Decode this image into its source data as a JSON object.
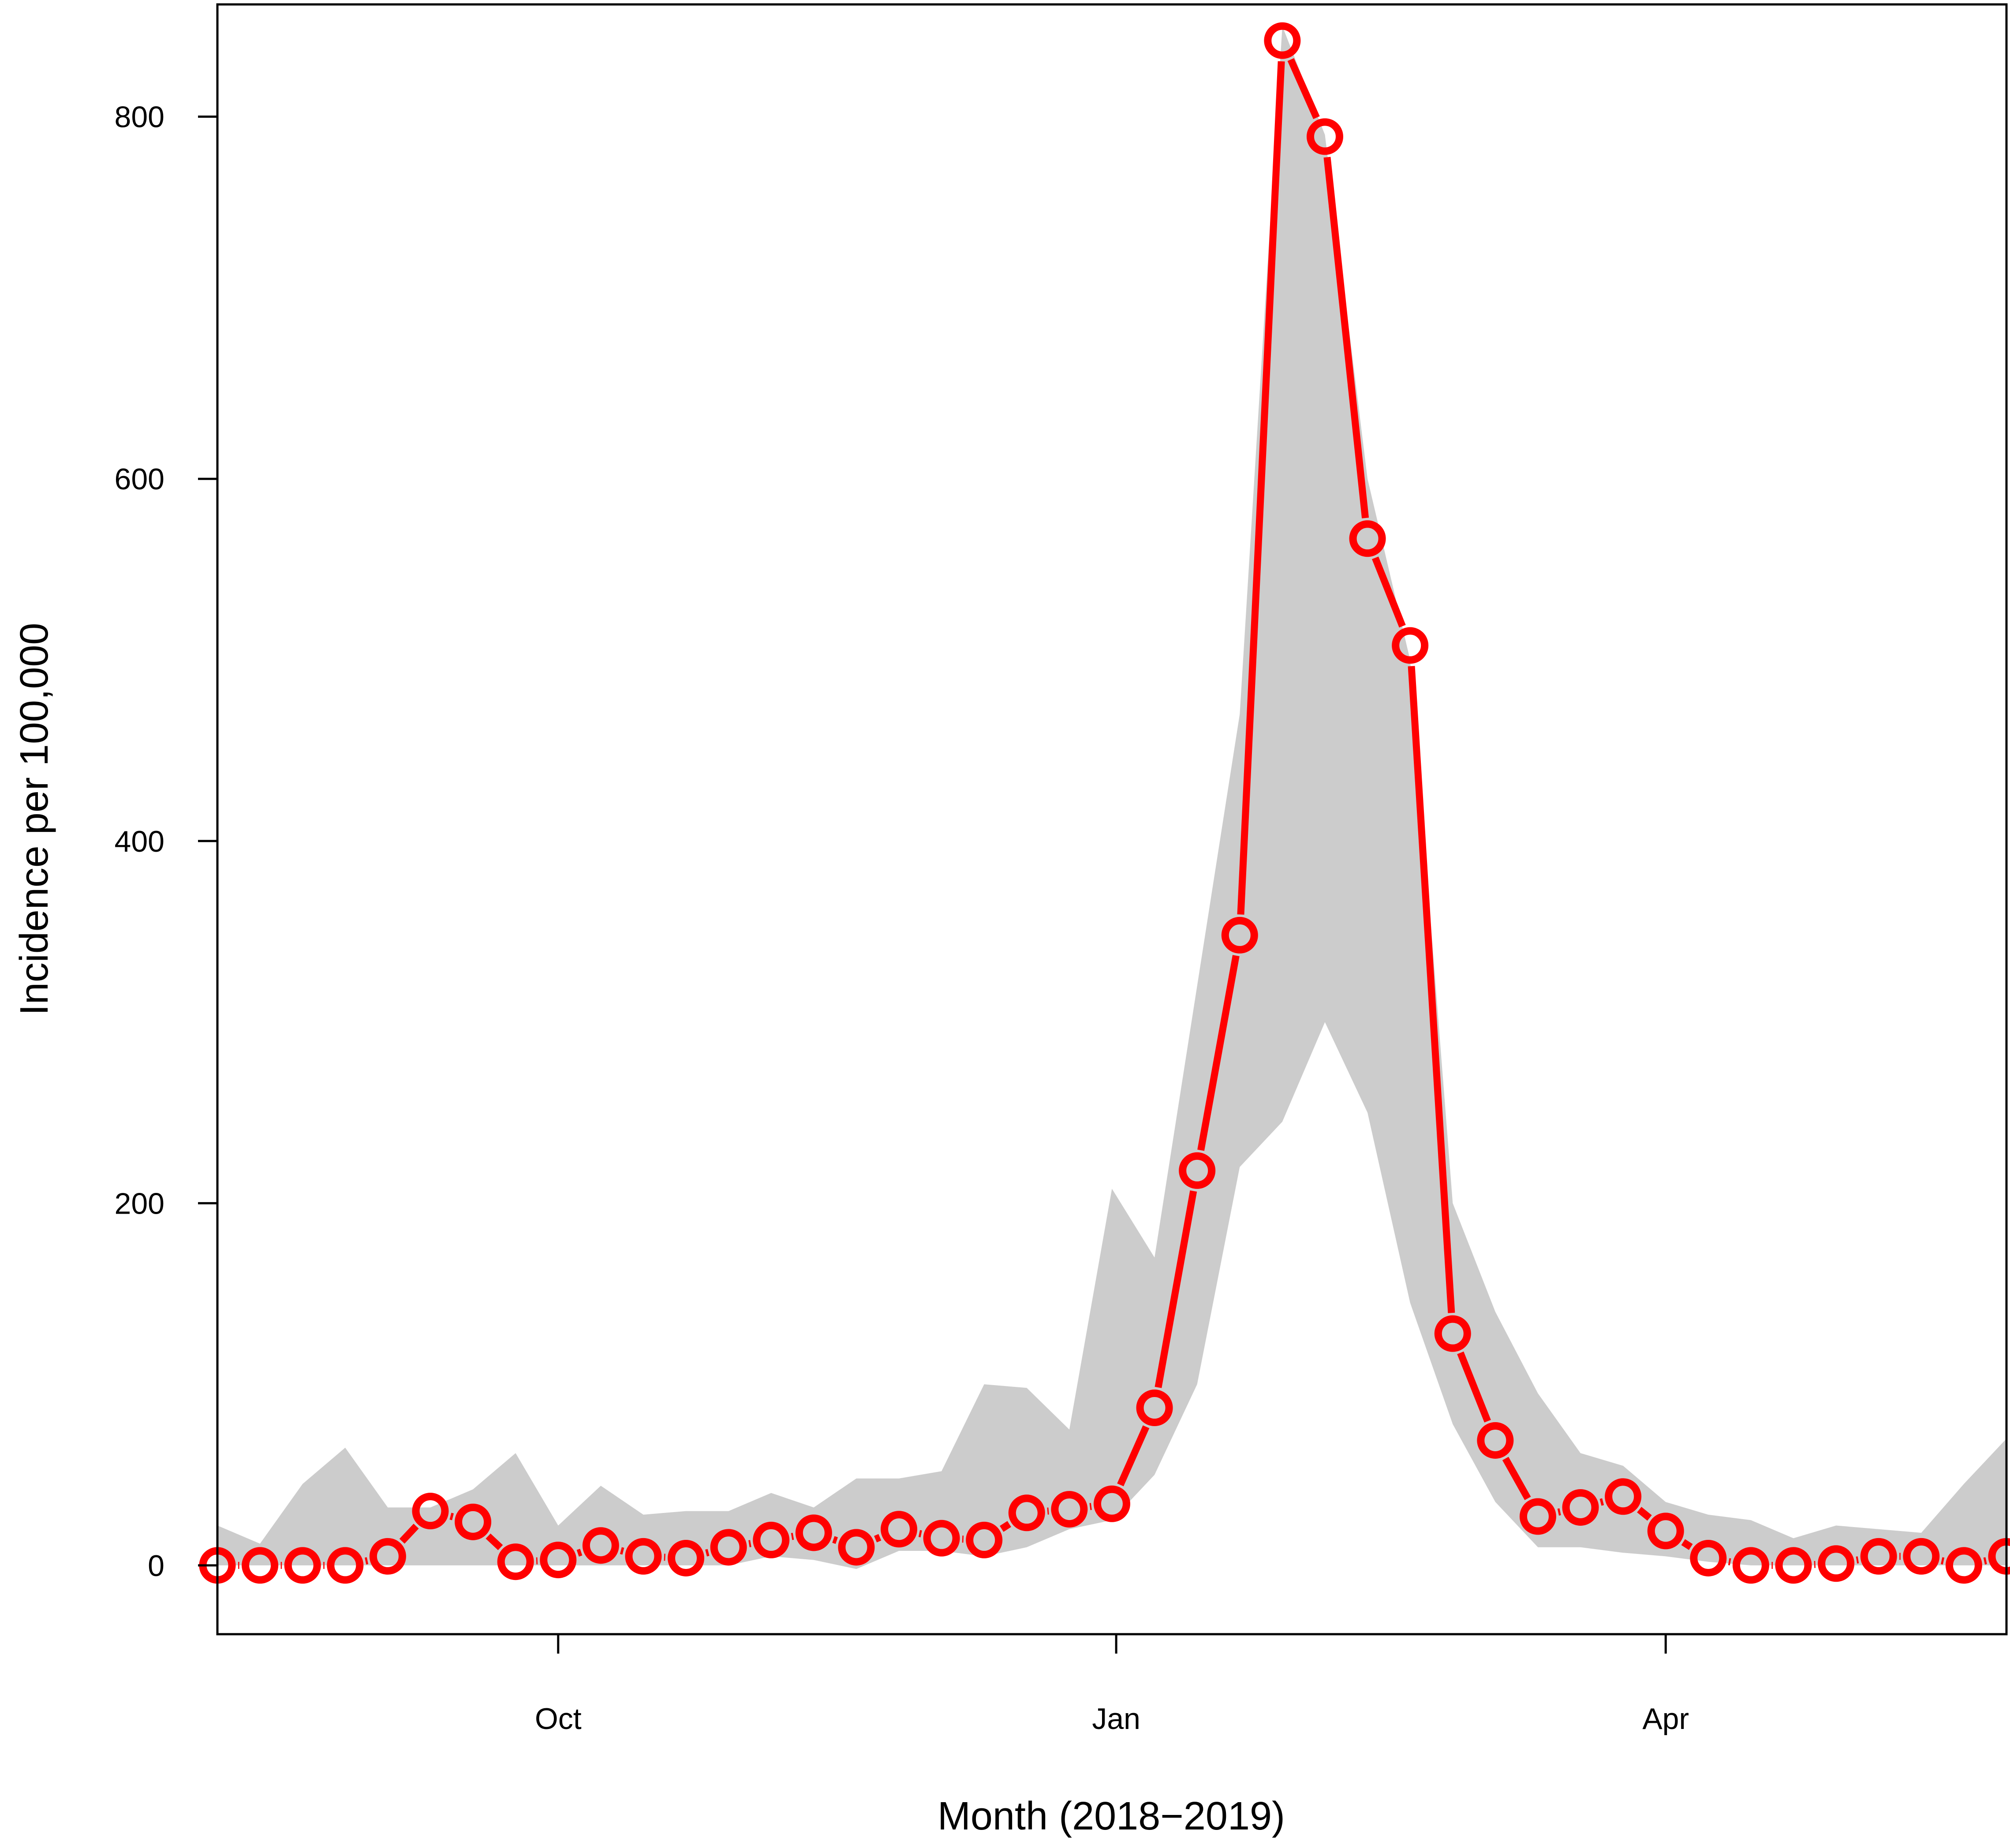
{
  "chart_data": {
    "type": "line",
    "title": "",
    "xlabel": "Month (2018−2019)",
    "ylabel": "Incidence per 100,000",
    "ylim": [
      -38,
      862
    ],
    "xlim": [
      0,
      42
    ],
    "x_ticks": [
      {
        "label": "Oct",
        "x": 8
      },
      {
        "label": "Jan",
        "x": 21.1
      },
      {
        "label": "Apr",
        "x": 34
      }
    ],
    "y_ticks": [
      0,
      200,
      400,
      600,
      800
    ],
    "x": [
      0,
      1,
      2,
      3,
      4,
      5,
      6,
      7,
      8,
      9,
      10,
      11,
      12,
      13,
      14,
      15,
      16,
      17,
      18,
      19,
      20,
      21,
      22,
      23,
      24,
      25,
      26,
      27,
      28,
      29,
      30,
      31,
      32,
      33,
      34,
      35,
      36,
      37,
      38,
      39,
      40,
      41,
      42
    ],
    "series": [
      {
        "values": [
          0,
          0,
          0,
          0,
          5,
          30,
          24,
          2,
          3,
          11,
          5,
          4,
          10,
          14,
          18,
          10,
          20,
          15,
          14,
          29,
          31,
          34,
          87,
          218,
          348,
          842,
          789,
          567,
          508,
          128,
          69,
          27,
          32,
          38,
          19,
          4,
          0,
          0,
          1,
          5,
          5,
          0,
          5
        ],
        "color": "#ff0000",
        "marker": "open-circle"
      }
    ],
    "band": {
      "lower": [
        0,
        0,
        0,
        0,
        0,
        0,
        0,
        0,
        0,
        0,
        0,
        0,
        0,
        5,
        3,
        -2,
        8,
        8,
        5,
        10,
        20,
        25,
        50,
        100,
        220,
        245,
        300,
        250,
        145,
        78,
        35,
        10,
        10,
        7,
        5,
        2,
        0,
        0,
        0,
        0,
        0,
        0,
        0
      ],
      "upper": [
        22,
        12,
        45,
        65,
        32,
        32,
        42,
        62,
        22,
        44,
        28,
        30,
        30,
        40,
        32,
        48,
        48,
        52,
        100,
        98,
        75,
        208,
        170,
        320,
        470,
        850,
        790,
        600,
        500,
        200,
        140,
        95,
        62,
        55,
        35,
        28,
        25,
        15,
        22,
        20,
        18,
        45,
        70
      ],
      "color": "#cccccc"
    },
    "grid": false,
    "legend": "none"
  }
}
